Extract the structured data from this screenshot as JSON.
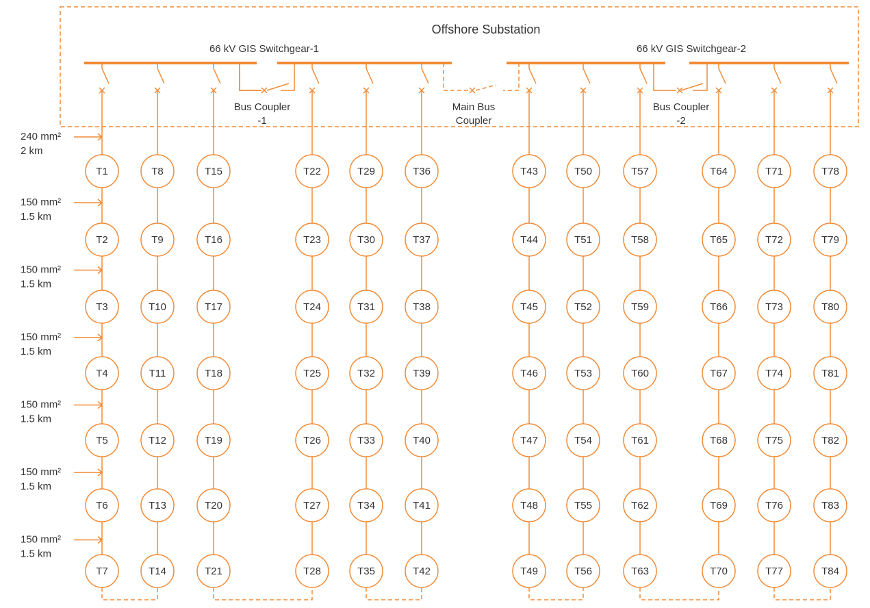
{
  "title": "Offshore Substation",
  "switchgears": [
    {
      "label": "66 kV GIS Switchgear-1"
    },
    {
      "label": "66 kV GIS Switchgear-2"
    }
  ],
  "couplers": [
    {
      "lines": [
        "Bus Coupler",
        "-1"
      ]
    },
    {
      "lines": [
        "Main Bus",
        "Coupler"
      ]
    },
    {
      "lines": [
        "Bus Coupler",
        "-2"
      ]
    }
  ],
  "cables": [
    {
      "size": "240 mm²",
      "length": "2 km"
    },
    {
      "size": "150 mm²",
      "length": "1.5 km"
    },
    {
      "size": "150 mm²",
      "length": "1.5 km"
    },
    {
      "size": "150 mm²",
      "length": "1.5 km"
    },
    {
      "size": "150 mm²",
      "length": "1.5 km"
    },
    {
      "size": "150 mm²",
      "length": "1.5 km"
    },
    {
      "size": "150 mm²",
      "length": "1.5 km"
    }
  ],
  "feeders": [
    {
      "nodes": [
        "T1",
        "T2",
        "T3",
        "T4",
        "T5",
        "T6",
        "T7"
      ]
    },
    {
      "nodes": [
        "T8",
        "T9",
        "T10",
        "T11",
        "T12",
        "T13",
        "T14"
      ]
    },
    {
      "nodes": [
        "T15",
        "T16",
        "T17",
        "T18",
        "T19",
        "T20",
        "T21"
      ]
    },
    {
      "nodes": [
        "T22",
        "T23",
        "T24",
        "T25",
        "T26",
        "T27",
        "T28"
      ]
    },
    {
      "nodes": [
        "T29",
        "T30",
        "T31",
        "T32",
        "T33",
        "T34",
        "T35"
      ]
    },
    {
      "nodes": [
        "T36",
        "T37",
        "T38",
        "T39",
        "T40",
        "T41",
        "T42"
      ]
    },
    {
      "nodes": [
        "T43",
        "T44",
        "T45",
        "T46",
        "T47",
        "T48",
        "T49"
      ]
    },
    {
      "nodes": [
        "T50",
        "T51",
        "T52",
        "T53",
        "T54",
        "T55",
        "T56"
      ]
    },
    {
      "nodes": [
        "T57",
        "T58",
        "T59",
        "T60",
        "T61",
        "T62",
        "T63"
      ]
    },
    {
      "nodes": [
        "T64",
        "T65",
        "T66",
        "T67",
        "T68",
        "T69",
        "T70"
      ]
    },
    {
      "nodes": [
        "T71",
        "T72",
        "T73",
        "T74",
        "T75",
        "T76",
        "T77"
      ]
    },
    {
      "nodes": [
        "T78",
        "T79",
        "T80",
        "T81",
        "T82",
        "T83",
        "T84"
      ]
    }
  ]
}
